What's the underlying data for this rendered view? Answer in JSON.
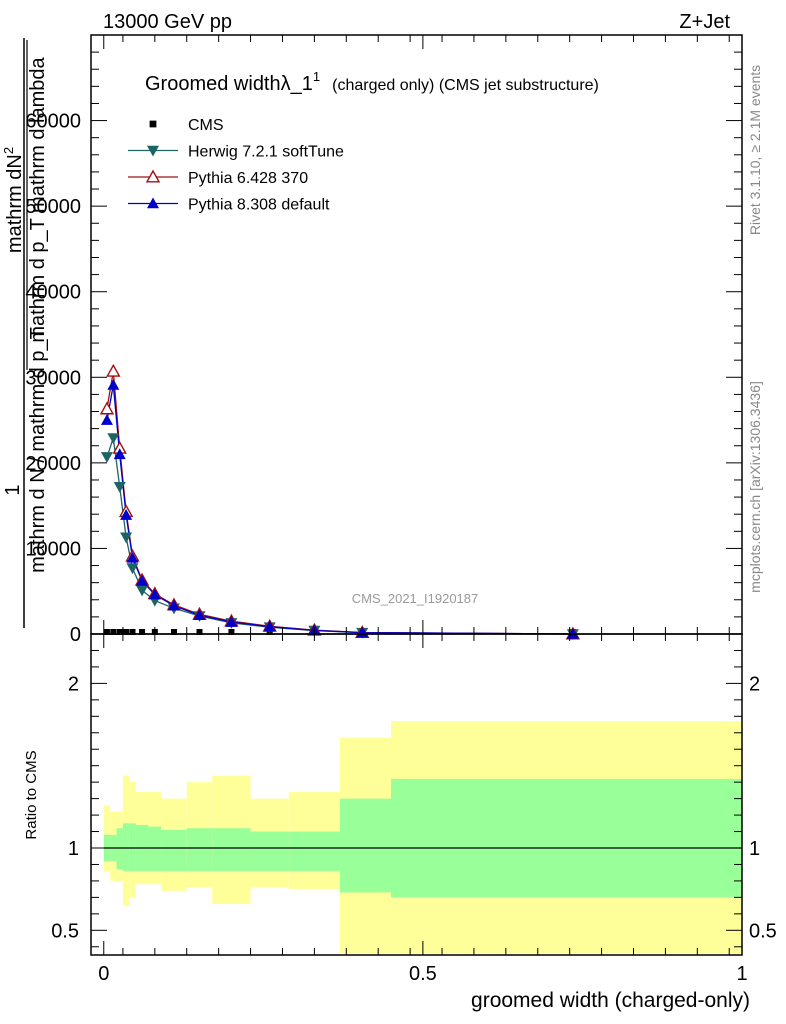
{
  "header": {
    "left": "13000 GeV pp",
    "right": "Z+Jet"
  },
  "side": {
    "rivet": "Rivet 3.1.10, ≥ 2.1M events",
    "mcplots": "mcplots.cern.ch [arXiv:1306.3436]"
  },
  "chart_data": {
    "type": "line",
    "title": "Groomed widthλ_1",
    "title_sup": "1",
    "subtitle": "(charged only) (CMS jet substructure)",
    "analysis": "CMS_2021_I1920187",
    "xlabel": "groomed width (charged-only)",
    "ylabel_main": {
      "numerator": "1",
      "frac_top": "mathrm dN",
      "frac_top_sup": "2",
      "frac_mid": "mathrm d p_T mathrm d lambda",
      "frac_bottom": "mathrm d N / mathrm d p_T"
    },
    "ylabel_ratio": "Ratio to CMS",
    "xlim": [
      -0.02,
      1.0
    ],
    "ylim_main": [
      0,
      70000
    ],
    "ylim_ratio": [
      0.35,
      2.3
    ],
    "x_ticks": [
      0,
      0.5,
      1
    ],
    "x_tick_labels": [
      "0",
      "0.5",
      "1"
    ],
    "y_ticks_main": [
      0,
      10000,
      20000,
      30000,
      40000,
      50000,
      60000
    ],
    "y_tick_labels_main": [
      "0",
      "10000",
      "20000",
      "30000",
      "40000",
      "50000",
      "60000"
    ],
    "y_ticks_ratio": [
      0.5,
      1,
      2
    ],
    "y_tick_labels_ratio": [
      "0.5",
      "1",
      "2"
    ],
    "series": [
      {
        "name": "CMS",
        "color": "#000000",
        "marker": "square",
        "x": [
          0.005,
          0.015,
          0.025,
          0.035,
          0.045,
          0.06,
          0.08,
          0.11,
          0.15,
          0.2,
          0.26,
          0.33,
          0.405,
          0.735
        ],
        "y": [
          0,
          0,
          0,
          0,
          0,
          0,
          0,
          0,
          0,
          0,
          0,
          0,
          0,
          0
        ]
      },
      {
        "name": "Herwig 7.2.1 softTune",
        "color": "#1f6464",
        "marker": "triangle-down",
        "x": [
          0.005,
          0.015,
          0.025,
          0.035,
          0.045,
          0.06,
          0.08,
          0.11,
          0.15,
          0.2,
          0.26,
          0.33,
          0.405,
          0.735
        ],
        "y": [
          20700,
          22900,
          17200,
          11300,
          7700,
          5100,
          3900,
          3000,
          2100,
          1300,
          800,
          400,
          150,
          0
        ]
      },
      {
        "name": "Pythia 6.428 370",
        "color": "#a01010",
        "marker": "triangle-up-open",
        "x": [
          0.005,
          0.015,
          0.025,
          0.035,
          0.045,
          0.06,
          0.08,
          0.11,
          0.15,
          0.2,
          0.26,
          0.33,
          0.405,
          0.735
        ],
        "y": [
          26300,
          30700,
          21700,
          14300,
          9100,
          6300,
          4700,
          3400,
          2300,
          1500,
          900,
          450,
          170,
          0
        ]
      },
      {
        "name": "Pythia 8.308 default",
        "color": "#0000cc",
        "marker": "triangle-up",
        "x": [
          0.005,
          0.015,
          0.025,
          0.035,
          0.045,
          0.06,
          0.08,
          0.11,
          0.15,
          0.2,
          0.26,
          0.33,
          0.405,
          0.735
        ],
        "y": [
          25000,
          29100,
          21000,
          13900,
          8900,
          6200,
          4600,
          3300,
          2200,
          1400,
          850,
          420,
          160,
          0
        ]
      }
    ],
    "ratio_bands": {
      "edges": [
        0.0,
        0.01,
        0.02,
        0.03,
        0.04,
        0.05,
        0.07,
        0.09,
        0.13,
        0.17,
        0.23,
        0.29,
        0.37,
        0.45,
        1.0
      ],
      "stat_hi": [
        1.08,
        1.08,
        1.12,
        1.15,
        1.15,
        1.14,
        1.13,
        1.11,
        1.12,
        1.12,
        1.1,
        1.1,
        1.3,
        1.42
      ],
      "stat_lo": [
        0.92,
        0.92,
        0.87,
        0.86,
        0.86,
        0.86,
        0.86,
        0.86,
        0.86,
        0.86,
        0.86,
        0.86,
        0.73,
        0.7
      ],
      "tot_hi": [
        1.26,
        1.22,
        1.22,
        1.44,
        1.4,
        1.34,
        1.34,
        1.3,
        1.4,
        1.44,
        1.3,
        1.34,
        1.67,
        1.77
      ],
      "tot_lo": [
        0.86,
        0.8,
        0.8,
        0.65,
        0.7,
        0.78,
        0.78,
        0.74,
        0.76,
        0.66,
        0.76,
        0.75,
        0.36,
        0.36
      ],
      "stat_color": "#99ff99",
      "tot_color": "#ffff99"
    }
  }
}
